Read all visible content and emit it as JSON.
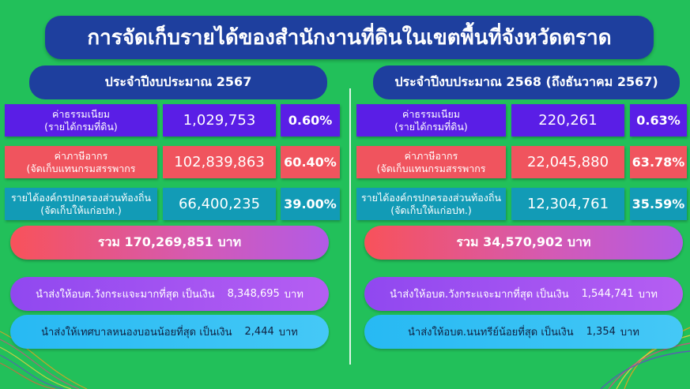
{
  "title": "การจัดเก็บรายได้ของสำนักงานที่ดินในเขตพื้นที่จังหวัดตราด",
  "left": {
    "header": "ประจำปีงบประมาณ 2567",
    "rows": [
      {
        "label1": "ค่าธรรมเนียม",
        "label2": "(รายได้กรมที่ดิน)",
        "value": "1,029,753",
        "percent": "0.60%"
      },
      {
        "label1": "ค่าภาษีอากร",
        "label2": "(จัดเก็บแทนกรมสรรพากร",
        "value": "102,839,863",
        "percent": "60.40%"
      },
      {
        "label1": "รายได้องค์กรปกครองส่วนท้องถิ่น",
        "label2": "(จัดเก็บให้แก่อปท.)",
        "value": "66,400,235",
        "percent": "39.00%"
      }
    ],
    "total": "รวม 170,269,851 บาท",
    "note1": {
      "text": "นำส่งให้อบต.วังกระแจะมากที่สุด เป็นเงิน",
      "amount": "8,348,695",
      "unit": "บาท"
    },
    "note2": {
      "text": "นำส่งให้เทศบาลหนองบอนน้อยที่สุด เป็นเงิน",
      "amount": "2,444",
      "unit": "บาท"
    }
  },
  "right": {
    "header": "ประจำปีงบประมาณ 2568 (ถึงธันวาคม 2567)",
    "rows": [
      {
        "label1": "ค่าธรรมเนียม",
        "label2": "(รายได้กรมที่ดิน)",
        "value": "220,261",
        "percent": "0.63%"
      },
      {
        "label1": "ค่าภาษีอากร",
        "label2": "(จัดเก็บแทนกรมสรรพากร",
        "value": "22,045,880",
        "percent": "63.78%"
      },
      {
        "label1": "รายได้องค์กรปกครองส่วนท้องถิ่น",
        "label2": "(จัดเก็บให้แก่อปท.)",
        "value": "12,304,761",
        "percent": "35.59%"
      }
    ],
    "total": "รวม 34,570,902 บาท",
    "note1": {
      "text": "นำส่งให้อบต.วังกระแจะมากที่สุด เป็นเงิน",
      "amount": "1,544,741",
      "unit": "บาท"
    },
    "note2": {
      "text": "นำส่งให้อบต.นนทรีย์น้อยที่สุด เป็นเงิน",
      "amount": "1,354",
      "unit": "บาท"
    }
  },
  "colors": {
    "background": "#22c05a",
    "navy": "#1e3f9e",
    "purple": "#5a1ee6",
    "red": "#f0545e",
    "teal": "#129bb6"
  }
}
